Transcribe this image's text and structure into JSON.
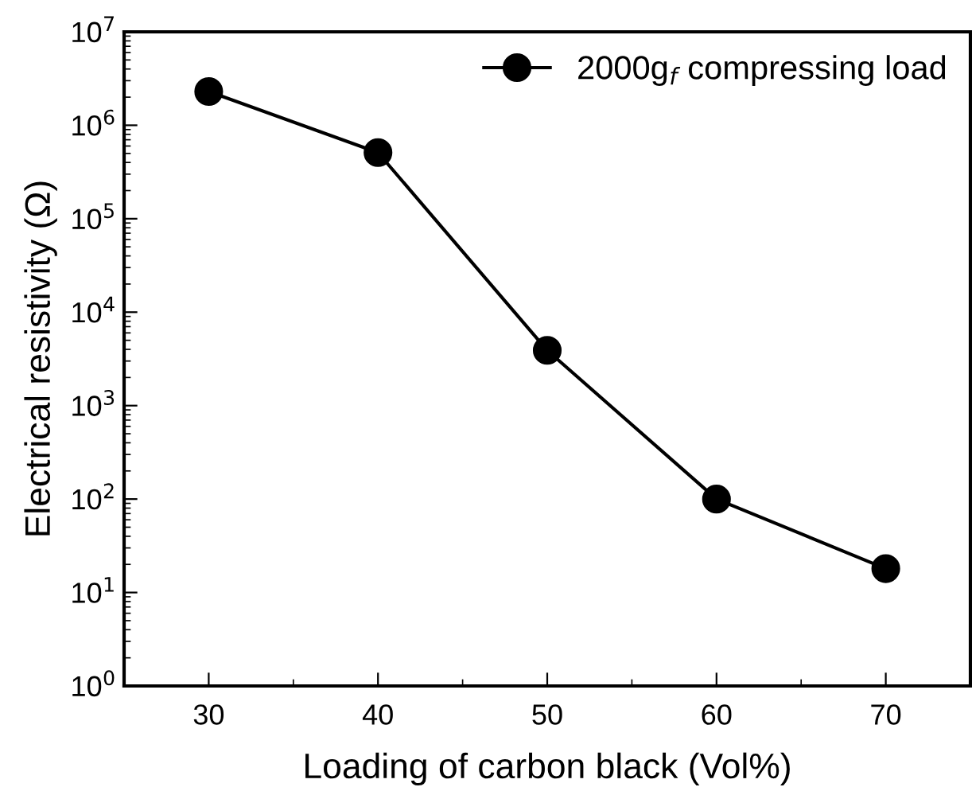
{
  "chart_data": {
    "type": "line",
    "xlabel": "Loading of carbon black (Vol%)",
    "ylabel": "Electrical resistivity (Ω)",
    "x": [
      30,
      40,
      50,
      60,
      70
    ],
    "series": [
      {
        "name": "2000g$_{f}$ compressing load",
        "color": "#000000",
        "values": [
          2300000,
          510000,
          3900,
          100,
          18
        ]
      }
    ],
    "xlim": [
      25,
      75
    ],
    "xticks": [
      30,
      40,
      50,
      60,
      70
    ],
    "ylim": [
      1,
      10000000
    ],
    "yticks": [
      {
        "value": 1,
        "label": "10$^{0}$"
      },
      {
        "value": 10,
        "label": "10$^{1}$"
      },
      {
        "value": 100,
        "label": "10$^{2}$"
      },
      {
        "value": 1000,
        "label": "10$^{3}$"
      },
      {
        "value": 10000,
        "label": "10$^{4}$"
      },
      {
        "value": 100000,
        "label": "10$^{5}$"
      },
      {
        "value": 1000000,
        "label": "10$^{6}$"
      },
      {
        "value": 10000000,
        "label": "10$^{7}$"
      }
    ],
    "log": "y",
    "marker": "circle",
    "line_style": "solid",
    "legend": "top right",
    "grid": false
  }
}
